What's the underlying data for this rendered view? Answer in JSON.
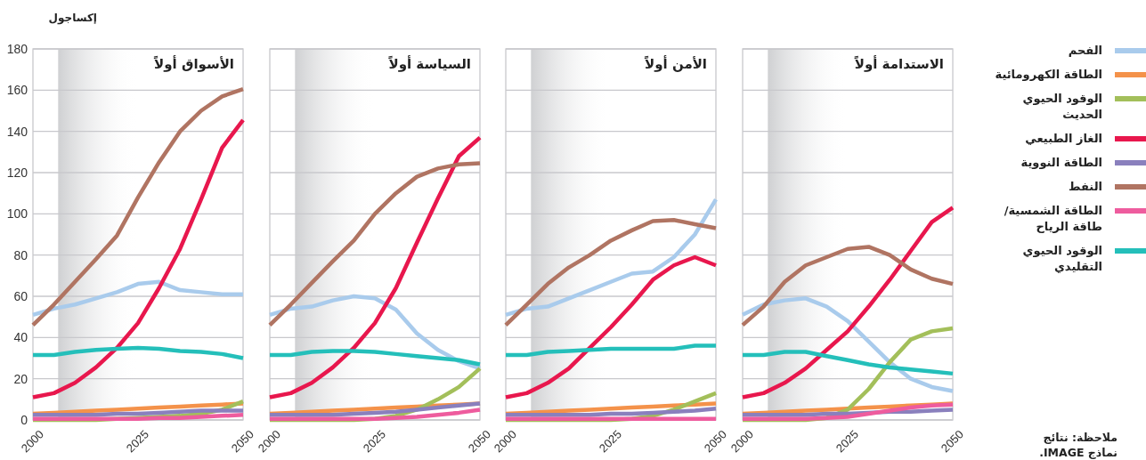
{
  "chart_data": [
    {
      "type": "line",
      "title": "الأسواق أولاً",
      "ylabel": "إكساجول",
      "x": [
        2000,
        2005,
        2010,
        2015,
        2020,
        2025,
        2030,
        2035,
        2040,
        2045,
        2050
      ],
      "xlim": [
        2000,
        2050
      ],
      "xticks": [
        2000,
        2025,
        2050
      ],
      "ylim": [
        0,
        180
      ],
      "yticks": [
        0,
        20,
        40,
        60,
        80,
        100,
        120,
        140,
        160,
        180
      ],
      "grid": "y",
      "bands": [
        {
          "axis": "x",
          "from": 2006,
          "to": 2025,
          "color": "#cfd0d2"
        }
      ],
      "series": [
        {
          "color": "#a9cbec",
          "values": [
            51,
            54,
            56,
            59,
            62,
            66,
            67,
            63,
            62,
            61,
            61
          ]
        },
        {
          "color": "#f4924a",
          "values": [
            3,
            3.5,
            4,
            4.5,
            5,
            5.5,
            6,
            6.5,
            7,
            7.5,
            8
          ]
        },
        {
          "color": "#a3bf5a",
          "values": [
            0,
            0,
            0,
            0,
            0.5,
            1,
            1.5,
            2,
            3,
            5,
            9
          ]
        },
        {
          "color": "#e8174d",
          "values": [
            11,
            13,
            18,
            25.5,
            35,
            47,
            64,
            83,
            107,
            132,
            145.5
          ]
        },
        {
          "color": "#8a80bd",
          "values": [
            2.5,
            2.5,
            2.5,
            2.5,
            3,
            3,
            3.5,
            4,
            4.5,
            4.5,
            4.5
          ]
        },
        {
          "color": "#b07462",
          "values": [
            46,
            56,
            67,
            78,
            89.5,
            108,
            125,
            140,
            150,
            157,
            160.5
          ]
        },
        {
          "color": "#ee5c9e",
          "values": [
            0.5,
            0.5,
            0.5,
            0.5,
            0.5,
            0.5,
            1,
            1,
            1.5,
            2,
            2.5
          ]
        },
        {
          "color": "#24bfba",
          "values": [
            31.5,
            31.5,
            33,
            34,
            34.5,
            35,
            34.5,
            33.5,
            33,
            32,
            30
          ]
        }
      ]
    },
    {
      "type": "line",
      "title": "السياسة أولاً",
      "tick_labels": "x",
      "x": [
        2000,
        2005,
        2010,
        2015,
        2020,
        2025,
        2030,
        2035,
        2040,
        2045,
        2050
      ],
      "xlim": [
        2000,
        2050
      ],
      "xticks": [
        2000,
        2025,
        2050
      ],
      "ylim": [
        0,
        180
      ],
      "yticks": [
        0,
        20,
        40,
        60,
        80,
        100,
        120,
        140,
        160,
        180
      ],
      "grid": "y",
      "bands": [
        {
          "axis": "x",
          "from": 2006,
          "to": 2025,
          "color": "#cfd0d2"
        }
      ],
      "series": [
        {
          "color": "#a9cbec",
          "values": [
            51,
            54,
            55,
            58,
            60,
            59,
            53.5,
            42,
            34,
            28.5,
            25
          ]
        },
        {
          "color": "#f4924a",
          "values": [
            3,
            3.5,
            4,
            4.5,
            5,
            5.5,
            6,
            6.5,
            7,
            7.5,
            8
          ]
        },
        {
          "color": "#a3bf5a",
          "values": [
            0,
            0,
            0,
            0,
            0,
            0.5,
            2,
            5,
            10,
            16,
            25
          ]
        },
        {
          "color": "#e8174d",
          "values": [
            11,
            13,
            18,
            25.5,
            35,
            47,
            64,
            86,
            107.5,
            128,
            137
          ]
        },
        {
          "color": "#8a80bd",
          "values": [
            2.5,
            2.5,
            2.5,
            2.5,
            3,
            3.5,
            4,
            5,
            6,
            7,
            8
          ]
        },
        {
          "color": "#b07462",
          "values": [
            46,
            56,
            66.5,
            77,
            87,
            100,
            110,
            118,
            122,
            124,
            124.5
          ]
        },
        {
          "color": "#ee5c9e",
          "values": [
            0.5,
            0.5,
            0.5,
            0.5,
            0.5,
            0.5,
            1,
            1.5,
            2.5,
            3.5,
            5
          ]
        },
        {
          "color": "#24bfba",
          "values": [
            31.5,
            31.5,
            33,
            33.5,
            33.5,
            33,
            32,
            31,
            30,
            29,
            27
          ]
        }
      ]
    },
    {
      "type": "line",
      "title": "الأمن أولاً",
      "tick_labels": "x",
      "x": [
        2000,
        2005,
        2010,
        2015,
        2020,
        2025,
        2030,
        2035,
        2040,
        2045,
        2050
      ],
      "xlim": [
        2000,
        2050
      ],
      "xticks": [
        2000,
        2025,
        2050
      ],
      "ylim": [
        0,
        180
      ],
      "yticks": [
        0,
        20,
        40,
        60,
        80,
        100,
        120,
        140,
        160,
        180
      ],
      "grid": "y",
      "bands": [
        {
          "axis": "x",
          "from": 2006,
          "to": 2025,
          "color": "#cfd0d2"
        }
      ],
      "series": [
        {
          "color": "#a9cbec",
          "values": [
            51,
            54,
            55,
            59,
            63,
            67,
            71,
            72,
            79,
            90,
            107
          ]
        },
        {
          "color": "#f4924a",
          "values": [
            3,
            3.5,
            4,
            4.5,
            5,
            5.5,
            6,
            6.5,
            7,
            7.5,
            8
          ]
        },
        {
          "color": "#a3bf5a",
          "values": [
            0,
            0,
            0,
            0,
            0,
            0,
            0.5,
            2,
            5,
            9,
            13
          ]
        },
        {
          "color": "#e8174d",
          "values": [
            11,
            13,
            18,
            25,
            35,
            45,
            56,
            68,
            75,
            79,
            75
          ]
        },
        {
          "color": "#8a80bd",
          "values": [
            2.5,
            2.5,
            2.5,
            2.5,
            2.5,
            3,
            3,
            3.5,
            4,
            4.5,
            5.5
          ]
        },
        {
          "color": "#b07462",
          "values": [
            46,
            56,
            66,
            74,
            80,
            87,
            92,
            96.5,
            97,
            95,
            93
          ]
        },
        {
          "color": "#ee5c9e",
          "values": [
            0.5,
            0.5,
            0.5,
            0.5,
            0.5,
            0.5,
            0.5,
            0.5,
            0.5,
            0.5,
            0.5
          ]
        },
        {
          "color": "#24bfba",
          "values": [
            31.5,
            31.5,
            33,
            33.5,
            34,
            34.5,
            34.5,
            34.5,
            34.5,
            36,
            36
          ]
        }
      ]
    },
    {
      "type": "line",
      "title": "الاستدامة أولاً",
      "tick_labels": "x",
      "legend": "right",
      "annotations": [
        "ملاحظة: نتائج نماذج IMAGE."
      ],
      "x": [
        2000,
        2005,
        2010,
        2015,
        2020,
        2025,
        2030,
        2035,
        2040,
        2045,
        2050
      ],
      "xlim": [
        2000,
        2050
      ],
      "xticks": [
        2000,
        2025,
        2050
      ],
      "ylim": [
        0,
        180
      ],
      "yticks": [
        0,
        20,
        40,
        60,
        80,
        100,
        120,
        140,
        160,
        180
      ],
      "grid": "y",
      "bands": [
        {
          "axis": "x",
          "from": 2006,
          "to": 2025,
          "color": "#cfd0d2"
        }
      ],
      "series": [
        {
          "name": "الفحم",
          "color": "#a9cbec",
          "values": [
            51,
            56,
            58,
            59,
            55,
            48,
            38,
            28,
            20,
            16,
            14
          ]
        },
        {
          "name": "الطاقة الكهرومائية",
          "color": "#f4924a",
          "values": [
            3,
            3.5,
            4,
            4.5,
            5,
            5.5,
            6,
            6.5,
            7,
            7.5,
            8
          ]
        },
        {
          "name": "الوقود الحيوي الحديث",
          "color": "#a3bf5a",
          "values": [
            0,
            0,
            0,
            0,
            1,
            5,
            15,
            28,
            39,
            43,
            44.5
          ]
        },
        {
          "name": "الغاز الطبيعي",
          "color": "#e8174d",
          "values": [
            11,
            13,
            18,
            25,
            34,
            43,
            55,
            68,
            82,
            96,
            103
          ]
        },
        {
          "name": "الطاقة النووية",
          "color": "#8a80bd",
          "values": [
            2.5,
            2.5,
            2.5,
            2.5,
            3,
            3,
            3.5,
            4,
            4,
            4.5,
            5
          ]
        },
        {
          "name": "النفط",
          "color": "#b07462",
          "values": [
            46,
            55,
            67,
            75,
            79,
            83,
            84,
            80,
            73,
            68.5,
            66
          ]
        },
        {
          "name": "الطاقة الشمسية/ طاقة الرياح",
          "color": "#ee5c9e",
          "values": [
            0.5,
            0.5,
            0.5,
            0.5,
            1,
            1.5,
            3,
            4.5,
            6,
            7,
            7.5
          ]
        },
        {
          "name": "الوقود الحيوي التقليدي",
          "color": "#24bfba",
          "values": [
            31.5,
            31.5,
            33,
            33,
            31,
            29,
            27,
            25.5,
            24.5,
            23.5,
            22.5
          ]
        }
      ]
    }
  ]
}
